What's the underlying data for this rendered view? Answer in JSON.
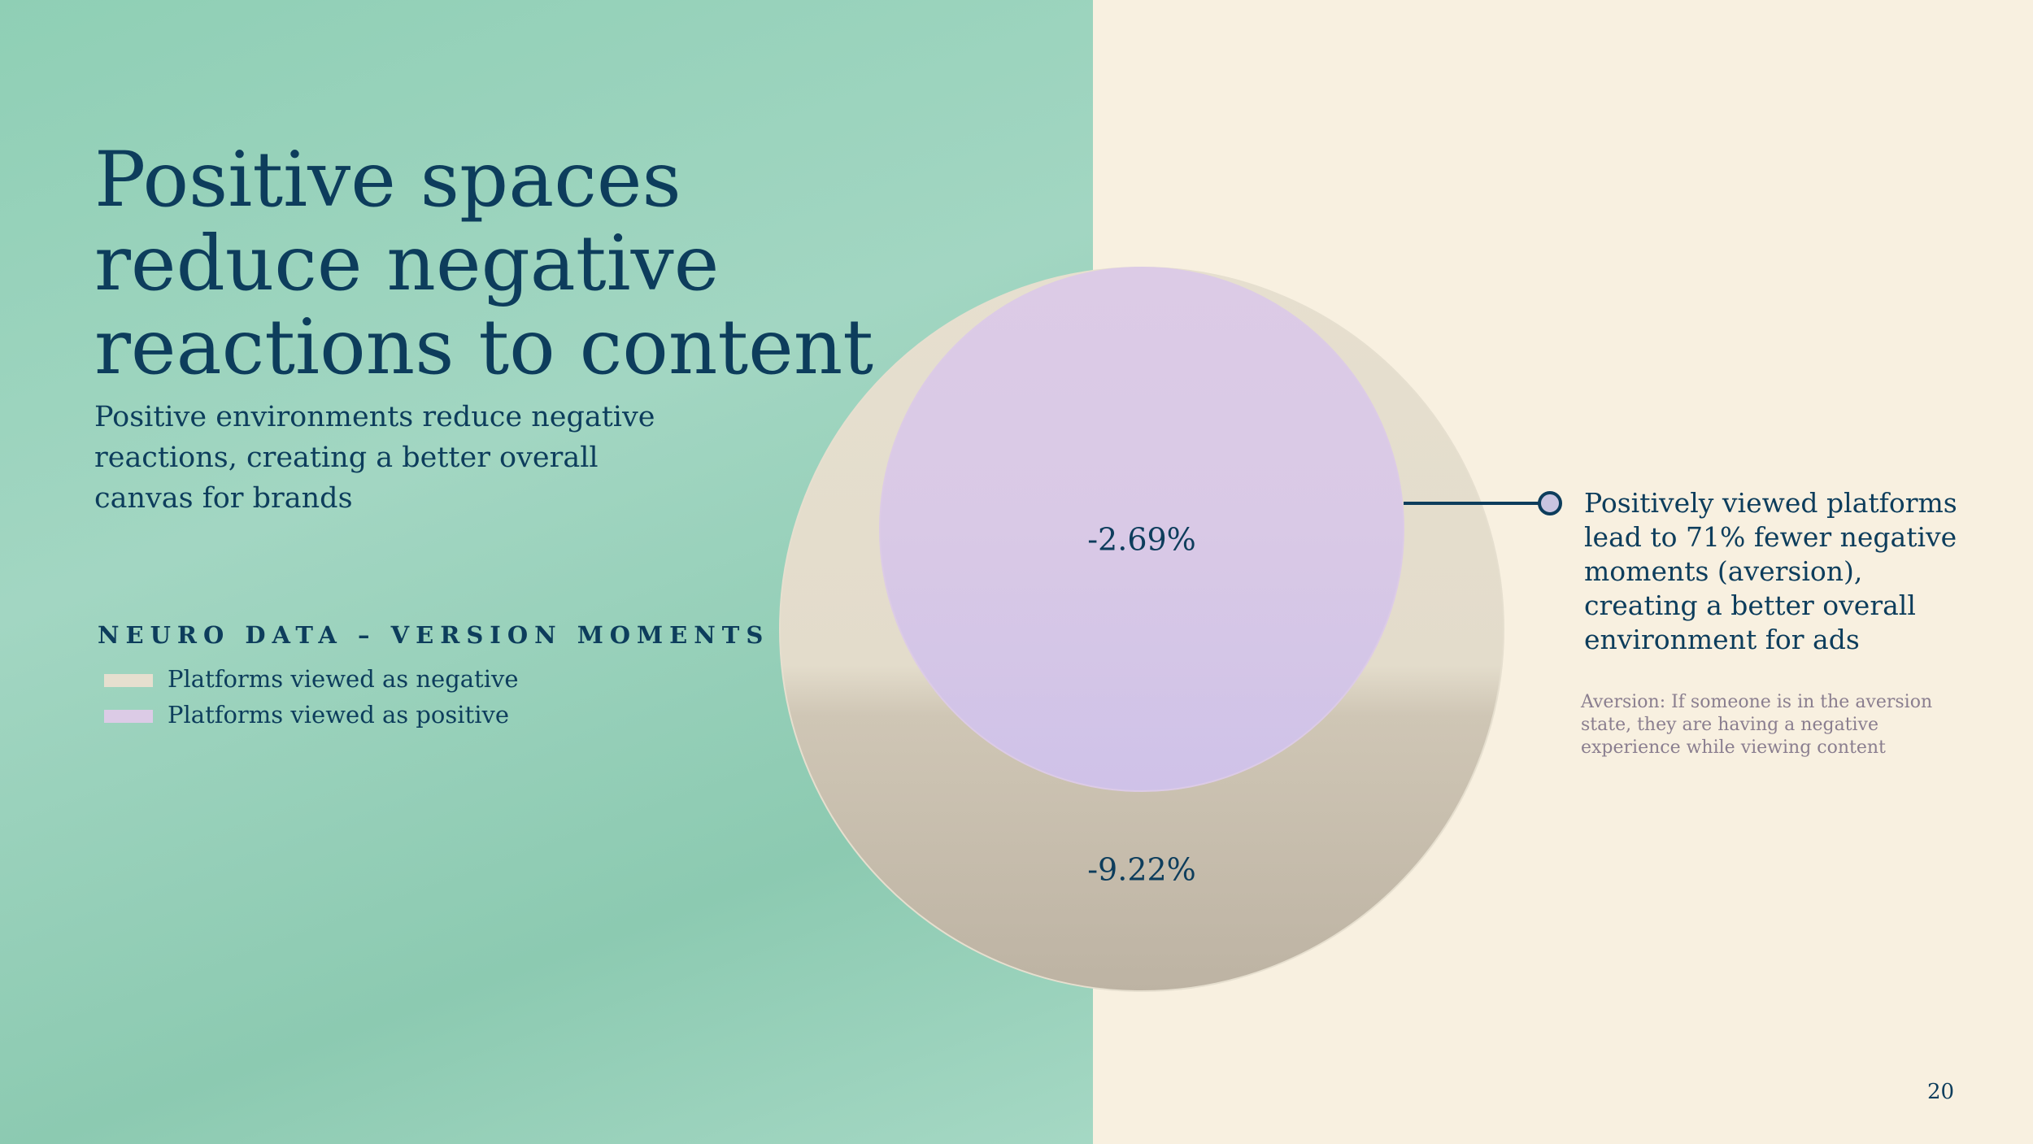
{
  "title": "Positive spaces reduce negative reactions to content",
  "subtitle": "Positive environments reduce negative reactions, creating a better overall canvas for brands",
  "chart_data": {
    "type": "nested-circles",
    "legend_title": "NEURO DATA – VERSION MOMENTS",
    "series": [
      {
        "name": "Platforms viewed as negative",
        "color": "#e6dfcf",
        "values": [
          -9.22
        ],
        "value_labels": [
          "-9.22%"
        ]
      },
      {
        "name": "Platforms viewed as positive",
        "color": "#dccbe6",
        "values": [
          -2.69
        ],
        "value_labels": [
          "-2.69%"
        ]
      }
    ],
    "annotation": "Positively viewed platforms lead to 71% fewer negative moments (aversion), creating a better overall environment for ads",
    "footnote": "Aversion: If someone is in the aversion state, they are having a negative experience while viewing content"
  },
  "page_number": "20"
}
